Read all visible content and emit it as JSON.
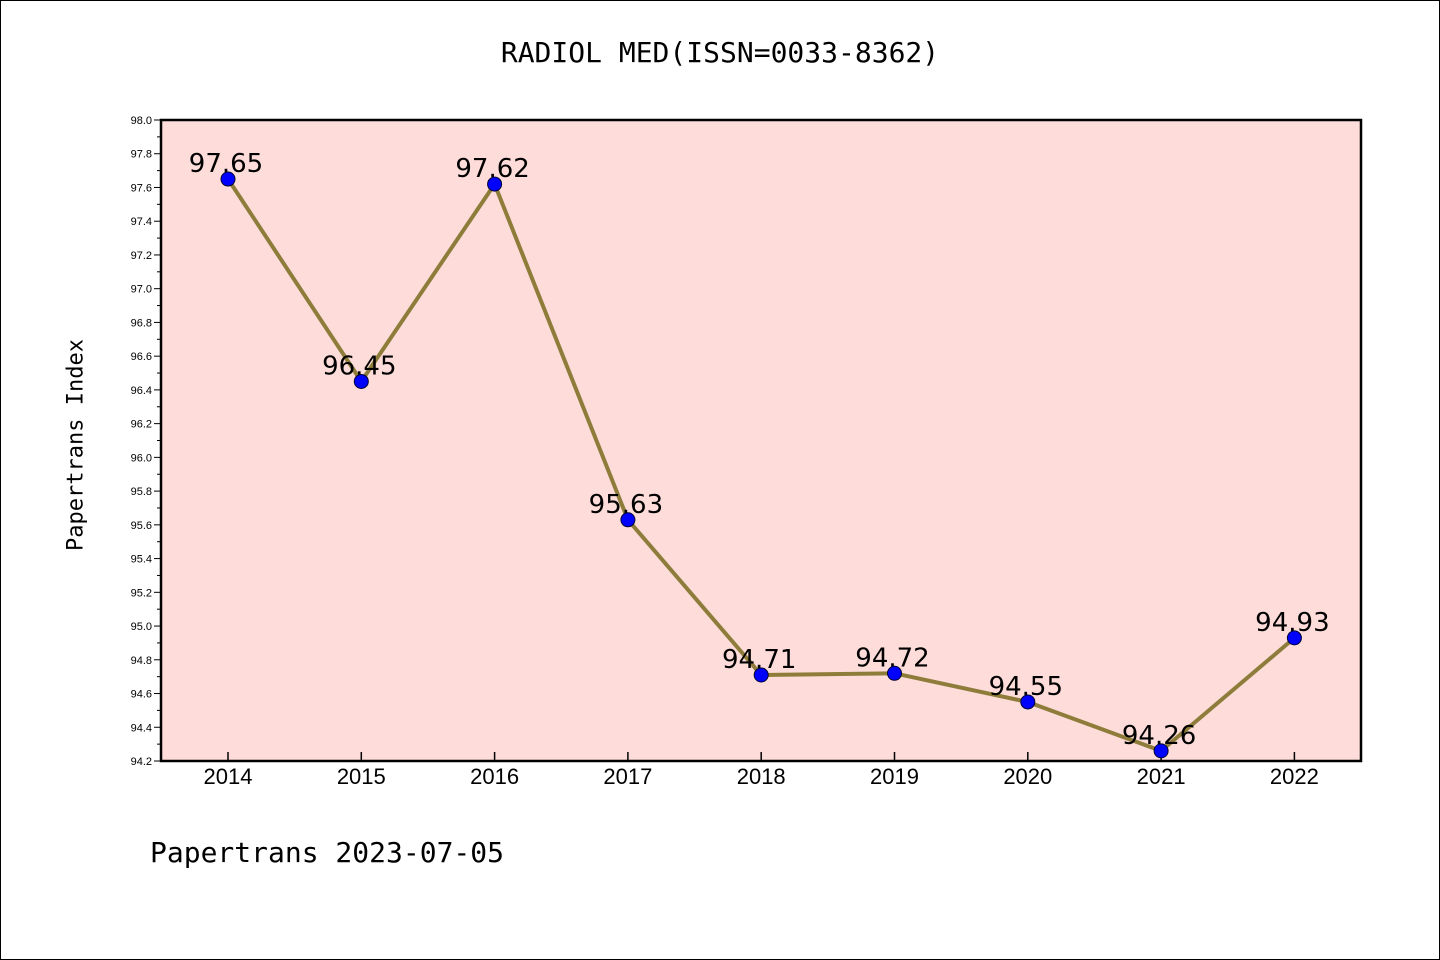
{
  "chart_data": {
    "type": "line",
    "title": "RADIOL MED(ISSN=0033-8362)",
    "xlabel": "",
    "ylabel": "Papertrans Index",
    "x": [
      "2014",
      "2015",
      "2016",
      "2017",
      "2018",
      "2019",
      "2020",
      "2021",
      "2022"
    ],
    "values": [
      97.65,
      96.45,
      97.62,
      95.63,
      94.71,
      94.72,
      94.55,
      94.26,
      94.93
    ],
    "data_labels": [
      "97.65",
      "96.45",
      "97.62",
      "95.63",
      "94.71",
      "94.72",
      "94.55",
      "94.26",
      "94.93"
    ],
    "ylim": [
      94.2,
      98.0
    ],
    "yticks": [
      "94.2",
      "94.4",
      "94.6",
      "94.8",
      "95.0",
      "95.2",
      "95.4",
      "95.6",
      "95.8",
      "96.0",
      "96.2",
      "96.4",
      "96.6",
      "96.8",
      "97.0",
      "97.2",
      "97.4",
      "97.6",
      "97.8",
      "98.0"
    ],
    "grid": false,
    "legend": "none",
    "colors": {
      "plot_background": "#FDDCDA",
      "line": "#8E7D3A",
      "marker": "#0000FF"
    }
  },
  "footer": "Papertrans 2023-07-05"
}
